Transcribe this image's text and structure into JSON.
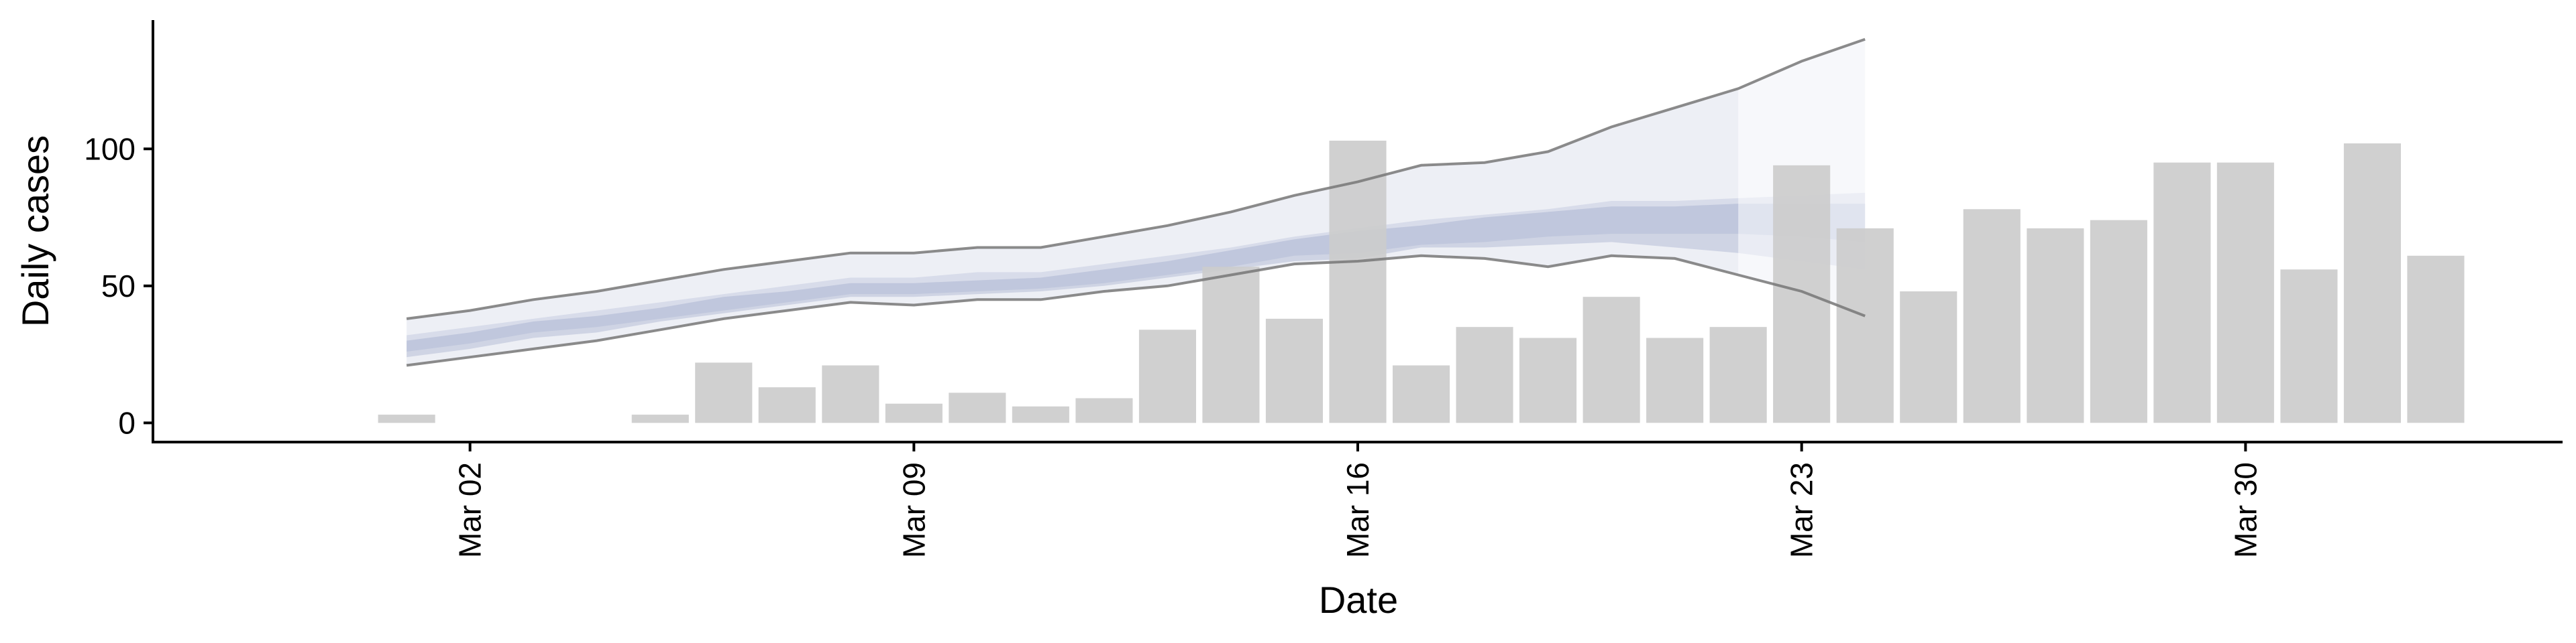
{
  "chart_data": {
    "type": "bar",
    "title": "",
    "xlabel": "Date",
    "ylabel": "Daily cases",
    "x_ticks": [
      {
        "date": "2020-03-02",
        "label": "Mar 02"
      },
      {
        "date": "2020-03-09",
        "label": "Mar 09"
      },
      {
        "date": "2020-03-16",
        "label": "Mar 16"
      },
      {
        "date": "2020-03-23",
        "label": "Mar 23"
      },
      {
        "date": "2020-03-30",
        "label": "Mar 30"
      }
    ],
    "y_ticks": [
      0,
      50,
      100
    ],
    "xlim": [
      "2020-02-26",
      "2020-04-04"
    ],
    "ylim": [
      -7,
      147
    ],
    "grid": false,
    "bar_color": "#cccccc",
    "bars": {
      "dates": [
        "2020-03-01",
        "2020-03-02",
        "2020-03-03",
        "2020-03-04",
        "2020-03-05",
        "2020-03-06",
        "2020-03-07",
        "2020-03-08",
        "2020-03-09",
        "2020-03-10",
        "2020-03-11",
        "2020-03-12",
        "2020-03-13",
        "2020-03-14",
        "2020-03-15",
        "2020-03-16",
        "2020-03-17",
        "2020-03-18",
        "2020-03-19",
        "2020-03-20",
        "2020-03-21",
        "2020-03-22",
        "2020-03-23",
        "2020-03-24",
        "2020-03-25",
        "2020-03-26",
        "2020-03-27",
        "2020-03-28",
        "2020-03-29",
        "2020-03-30",
        "2020-03-31",
        "2020-04-01",
        "2020-04-02"
      ],
      "values": [
        3,
        0,
        0,
        0,
        3,
        22,
        13,
        21,
        7,
        11,
        6,
        9,
        34,
        57,
        38,
        103,
        21,
        35,
        31,
        46,
        31,
        35,
        94,
        71,
        48,
        78,
        71,
        74,
        95,
        95,
        56,
        102,
        61
      ]
    },
    "estimate": {
      "color": "#8f9bc2",
      "line_color": "#777777",
      "fit_dates": [
        "2020-03-01",
        "2020-03-02",
        "2020-03-03",
        "2020-03-04",
        "2020-03-05",
        "2020-03-06",
        "2020-03-07",
        "2020-03-08",
        "2020-03-09",
        "2020-03-10",
        "2020-03-11",
        "2020-03-12",
        "2020-03-13",
        "2020-03-14",
        "2020-03-15",
        "2020-03-16",
        "2020-03-17",
        "2020-03-18",
        "2020-03-19",
        "2020-03-20",
        "2020-03-21",
        "2020-03-22"
      ],
      "forecast_dates": [
        "2020-03-22",
        "2020-03-23",
        "2020-03-24"
      ],
      "dates": [
        "2020-03-01",
        "2020-03-02",
        "2020-03-03",
        "2020-03-04",
        "2020-03-05",
        "2020-03-06",
        "2020-03-07",
        "2020-03-08",
        "2020-03-09",
        "2020-03-10",
        "2020-03-11",
        "2020-03-12",
        "2020-03-13",
        "2020-03-14",
        "2020-03-15",
        "2020-03-16",
        "2020-03-17",
        "2020-03-18",
        "2020-03-19",
        "2020-03-20",
        "2020-03-21",
        "2020-03-22",
        "2020-03-23",
        "2020-03-24"
      ],
      "outer_low": [
        21,
        24,
        27,
        30,
        34,
        38,
        41,
        44,
        43,
        45,
        45,
        48,
        50,
        54,
        58,
        59,
        61,
        60,
        57,
        61,
        60,
        54,
        48,
        39
      ],
      "outer_high": [
        38,
        41,
        45,
        48,
        52,
        56,
        59,
        62,
        62,
        64,
        64,
        68,
        72,
        77,
        83,
        88,
        94,
        95,
        99,
        108,
        115,
        122,
        132,
        140
      ],
      "mid_low": [
        26,
        29,
        33,
        35,
        38,
        41,
        44,
        47,
        47,
        48,
        49,
        51,
        54,
        57,
        61,
        62,
        65,
        66,
        68,
        69,
        69,
        69,
        68,
        66
      ],
      "mid_high": [
        32,
        35,
        38,
        41,
        44,
        47,
        50,
        53,
        53,
        55,
        55,
        58,
        61,
        64,
        68,
        71,
        74,
        76,
        78,
        81,
        81,
        82,
        83,
        84
      ],
      "inner_low": [
        24,
        27,
        31,
        33,
        37,
        40,
        43,
        46,
        46,
        47,
        48,
        50,
        53,
        56,
        59,
        60,
        64,
        64,
        65,
        66,
        64,
        62,
        59,
        56
      ],
      "inner_high": [
        30,
        33,
        37,
        39,
        42,
        46,
        48,
        51,
        51,
        52,
        53,
        56,
        59,
        63,
        67,
        70,
        72,
        75,
        77,
        79,
        79,
        80,
        80,
        80
      ]
    }
  }
}
